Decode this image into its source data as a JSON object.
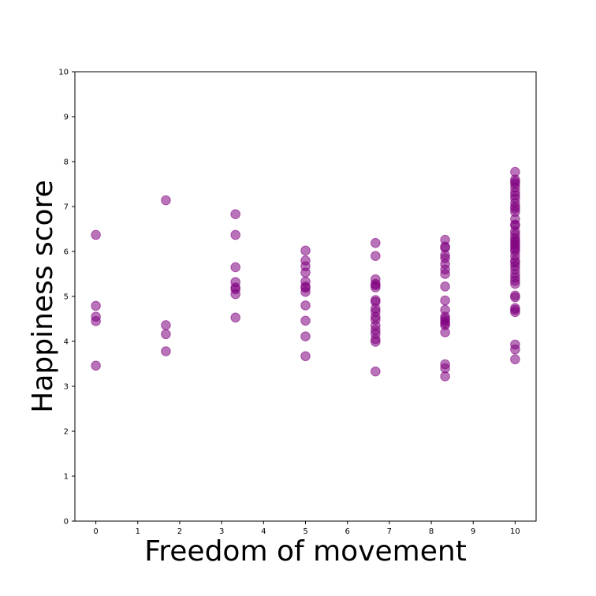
{
  "chart_data": {
    "type": "scatter",
    "xlabel": "Freedom of movement",
    "ylabel": "Happiness score",
    "xlim": [
      -0.5,
      10.5
    ],
    "ylim": [
      0,
      10
    ],
    "xticks": [
      0,
      1,
      2,
      3,
      4,
      5,
      6,
      7,
      8,
      9,
      10
    ],
    "yticks": [
      0,
      1,
      2,
      3,
      4,
      5,
      6,
      7,
      8,
      9,
      10
    ],
    "grid": false,
    "marker_color": "#800080",
    "marker_alpha": 0.55,
    "series": [
      {
        "points": [
          [
            0,
            6.37
          ],
          [
            0,
            4.79
          ],
          [
            0,
            4.55
          ],
          [
            0,
            4.45
          ],
          [
            0,
            3.46
          ],
          [
            1.67,
            7.14
          ],
          [
            1.67,
            4.36
          ],
          [
            1.67,
            4.16
          ],
          [
            1.67,
            3.78
          ],
          [
            3.33,
            6.83
          ],
          [
            3.33,
            6.37
          ],
          [
            3.33,
            5.65
          ],
          [
            3.33,
            5.32
          ],
          [
            3.33,
            5.2
          ],
          [
            3.33,
            5.16
          ],
          [
            3.33,
            5.05
          ],
          [
            3.33,
            4.53
          ],
          [
            5,
            6.02
          ],
          [
            5,
            5.8
          ],
          [
            5,
            5.67
          ],
          [
            5,
            5.53
          ],
          [
            5,
            5.33
          ],
          [
            5,
            5.22
          ],
          [
            5,
            5.19
          ],
          [
            5,
            5.1
          ],
          [
            5,
            4.8
          ],
          [
            5,
            4.46
          ],
          [
            5,
            4.11
          ],
          [
            5,
            3.67
          ],
          [
            6.67,
            6.19
          ],
          [
            6.67,
            5.9
          ],
          [
            6.67,
            5.38
          ],
          [
            6.67,
            5.28
          ],
          [
            6.67,
            5.25
          ],
          [
            6.67,
            5.2
          ],
          [
            6.67,
            4.92
          ],
          [
            6.67,
            4.88
          ],
          [
            6.67,
            4.73
          ],
          [
            6.67,
            4.66
          ],
          [
            6.67,
            4.55
          ],
          [
            6.67,
            4.48
          ],
          [
            6.67,
            4.35
          ],
          [
            6.67,
            4.25
          ],
          [
            6.67,
            4.17
          ],
          [
            6.67,
            4.05
          ],
          [
            6.67,
            3.99
          ],
          [
            6.67,
            3.33
          ],
          [
            8.33,
            6.26
          ],
          [
            8.33,
            6.11
          ],
          [
            8.33,
            6.08
          ],
          [
            8.33,
            5.92
          ],
          [
            8.33,
            5.85
          ],
          [
            8.33,
            5.72
          ],
          [
            8.33,
            5.6
          ],
          [
            8.33,
            5.5
          ],
          [
            8.33,
            5.22
          ],
          [
            8.33,
            4.91
          ],
          [
            8.33,
            4.7
          ],
          [
            8.33,
            4.55
          ],
          [
            8.33,
            4.5
          ],
          [
            8.33,
            4.45
          ],
          [
            8.33,
            4.4
          ],
          [
            8.33,
            4.36
          ],
          [
            8.33,
            4.2
          ],
          [
            8.33,
            3.49
          ],
          [
            8.33,
            3.4
          ],
          [
            8.33,
            3.22
          ],
          [
            10,
            7.77
          ],
          [
            10,
            7.6
          ],
          [
            10,
            7.55
          ],
          [
            10,
            7.5
          ],
          [
            10,
            7.42
          ],
          [
            10,
            7.32
          ],
          [
            10,
            7.25
          ],
          [
            10,
            7.18
          ],
          [
            10,
            7.08
          ],
          [
            10,
            7.0
          ],
          [
            10,
            6.95
          ],
          [
            10,
            6.88
          ],
          [
            10,
            6.72
          ],
          [
            10,
            6.6
          ],
          [
            10,
            6.58
          ],
          [
            10,
            6.45
          ],
          [
            10,
            6.38
          ],
          [
            10,
            6.3
          ],
          [
            10,
            6.25
          ],
          [
            10,
            6.2
          ],
          [
            10,
            6.15
          ],
          [
            10,
            6.1
          ],
          [
            10,
            6.05
          ],
          [
            10,
            6.0
          ],
          [
            10,
            5.9
          ],
          [
            10,
            5.8
          ],
          [
            10,
            5.75
          ],
          [
            10,
            5.68
          ],
          [
            10,
            5.6
          ],
          [
            10,
            5.5
          ],
          [
            10,
            5.42
          ],
          [
            10,
            5.35
          ],
          [
            10,
            5.28
          ],
          [
            10,
            5.02
          ],
          [
            10,
            4.98
          ],
          [
            10,
            4.74
          ],
          [
            10,
            4.7
          ],
          [
            10,
            4.65
          ],
          [
            10,
            3.93
          ],
          [
            10,
            3.82
          ],
          [
            10,
            3.6
          ]
        ]
      }
    ]
  }
}
